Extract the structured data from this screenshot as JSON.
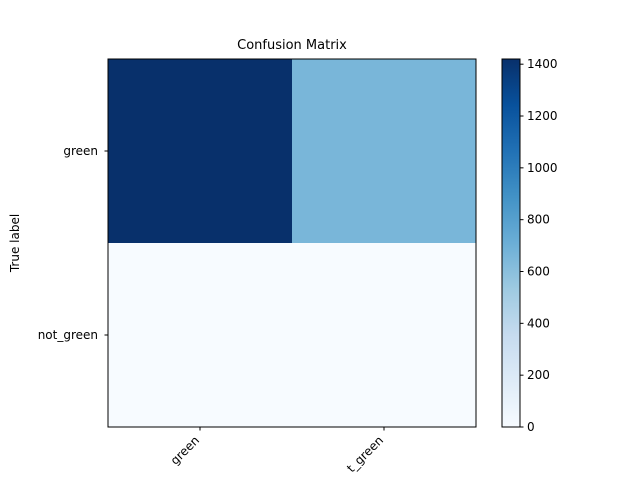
{
  "chart_data": {
    "type": "heatmap",
    "title": "Confusion Matrix",
    "xlabel": "",
    "ylabel": "True label",
    "x_categories": [
      "green",
      "not_green"
    ],
    "y_categories": [
      "green",
      "not_green"
    ],
    "values": [
      [
        1420,
        660
      ],
      [
        0,
        0
      ]
    ],
    "colormap": "Blues",
    "colorbar": {
      "min": 0,
      "max": 1420,
      "ticks": [
        0,
        200,
        400,
        600,
        800,
        1000,
        1200,
        1400
      ],
      "tick_labels": [
        "0",
        "200",
        "400",
        "600",
        "800",
        "1000",
        "1200",
        "1400"
      ]
    },
    "x_tick_labels_visible": [
      "green",
      "t_green"
    ]
  }
}
